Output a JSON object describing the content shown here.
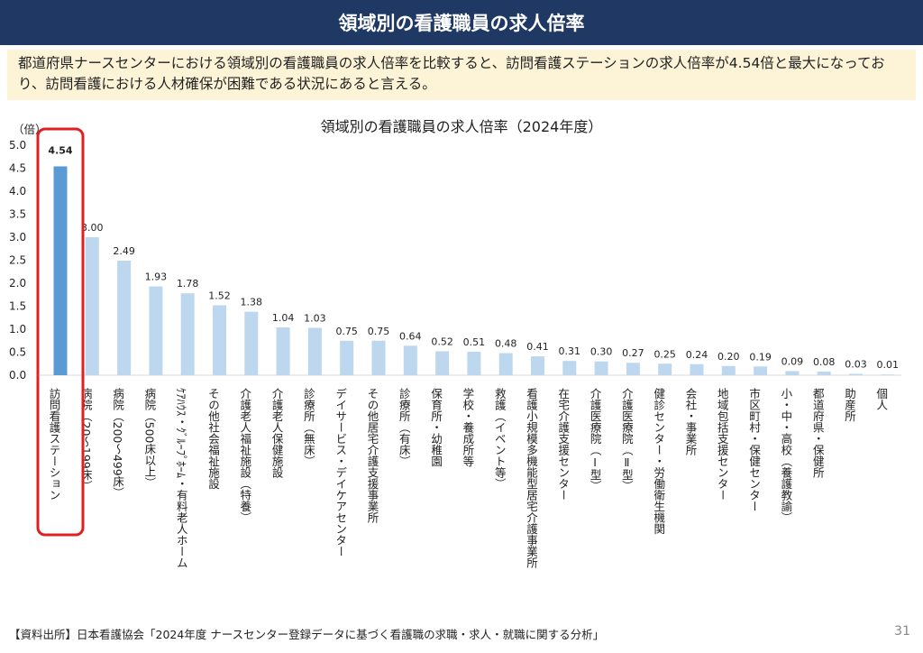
{
  "header": {
    "title": "領域別の看護職員の求人倍率"
  },
  "summary": {
    "text": "都道府県ナースセンターにおける領域別の看護職員の求人倍率を比較すると、訪問看護ステーションの求人倍率が4.54倍と最大になっており、訪問看護における人材確保が困難である状況にあると言える。"
  },
  "footer": {
    "source": "【資料出所】日本看護協会「2024年度 ナースセンター登録データに基づく看護職の求職・求人・就職に関する分析」",
    "page_number": "31"
  },
  "chart_data": {
    "type": "bar",
    "title": "領域別の看護職員の求人倍率（2024年度）",
    "ylabel": "（倍）",
    "ylim": [
      0,
      5.0
    ],
    "yticks": [
      "0.0",
      "0.5",
      "1.0",
      "1.5",
      "2.0",
      "2.5",
      "3.0",
      "3.5",
      "4.0",
      "4.5",
      "5.0"
    ],
    "grid": false,
    "highlight_index": 0,
    "colors": {
      "highlight": "#5b9bd5",
      "default": "#bdd7ee",
      "frame": "#e02020"
    },
    "categories": [
      "訪問看護ステーション",
      "病院（20～199床）",
      "病院（200～499床）",
      "病院（500床以上）",
      "ｹｱﾊｳｽ・ｸﾞﾙｰﾌﾟﾎｰﾑ・有料老人ホーム",
      "その他社会福祉施設",
      "介護老人福祉施設（特養）",
      "介護老人保健施設",
      "診療所（無床）",
      "デイサービス・デイケアセンター",
      "その他居宅介護支援事業所",
      "診療所（有床）",
      "保育所・幼稚園",
      "学校・養成所等",
      "救護（イベント等）",
      "看護小規模多機能型居宅介護事業所",
      "在宅介護支援センター",
      "介護医療院（Ⅰ型）",
      "介護医療院（Ⅱ型）",
      "健診センター・労働衛生機関",
      "会社・事業所",
      "地域包括支援センター",
      "市区町村・保健センター",
      "小・中・高校（養護教諭）",
      "都道府県・保健所",
      "助産所",
      "個人"
    ],
    "value_labels": [
      "4.54",
      "3.00",
      "2.49",
      "1.93",
      "1.78",
      "1.52",
      "1.38",
      "1.04",
      "1.03",
      "0.75",
      "0.75",
      "0.64",
      "0.52",
      "0.51",
      "0.48",
      "0.41",
      "0.31",
      "0.30",
      "0.27",
      "0.25",
      "0.24",
      "0.20",
      "0.19",
      "0.09",
      "0.08",
      "0.03",
      "0.01"
    ],
    "values": [
      4.54,
      3.0,
      2.49,
      1.93,
      1.78,
      1.52,
      1.38,
      1.04,
      1.03,
      0.75,
      0.75,
      0.64,
      0.52,
      0.51,
      0.48,
      0.41,
      0.31,
      0.3,
      0.27,
      0.25,
      0.24,
      0.2,
      0.19,
      0.09,
      0.08,
      0.03,
      0.01
    ]
  }
}
